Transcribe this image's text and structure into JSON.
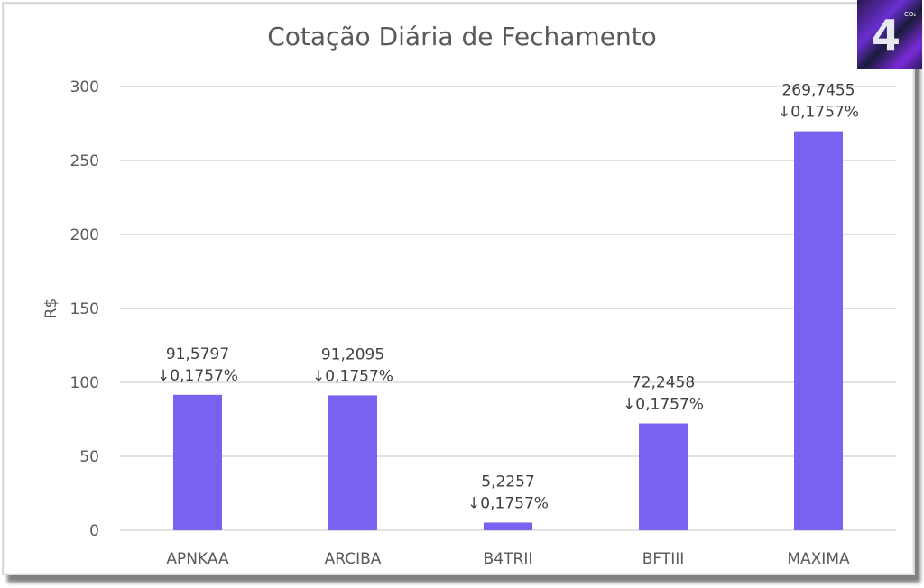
{
  "chart_data": {
    "type": "bar",
    "title": "Cotação Diária de Fechamento",
    "xlabel": "",
    "ylabel": "R$",
    "ylim": [
      0,
      300
    ],
    "yticks": [
      0,
      50,
      100,
      150,
      200,
      250,
      300
    ],
    "grid": true,
    "categories": [
      "APNKAA",
      "ARCIBA",
      "B4TRII",
      "BFTIII",
      "MAXIMA"
    ],
    "values": [
      91.5797,
      91.2095,
      5.2257,
      72.2458,
      269.7455
    ],
    "data_labels": [
      "91,5797",
      "91,2095",
      "5,2257",
      "72,2458",
      "269,7455"
    ],
    "change_labels": [
      "↓0,1757%",
      "↓0,1757%",
      "↓0,1757%",
      "↓0,1757%",
      "↓0,1757%"
    ],
    "bar_color": "#7b61f0"
  },
  "logo": {
    "text": "D4",
    "superscript": "CO2"
  }
}
